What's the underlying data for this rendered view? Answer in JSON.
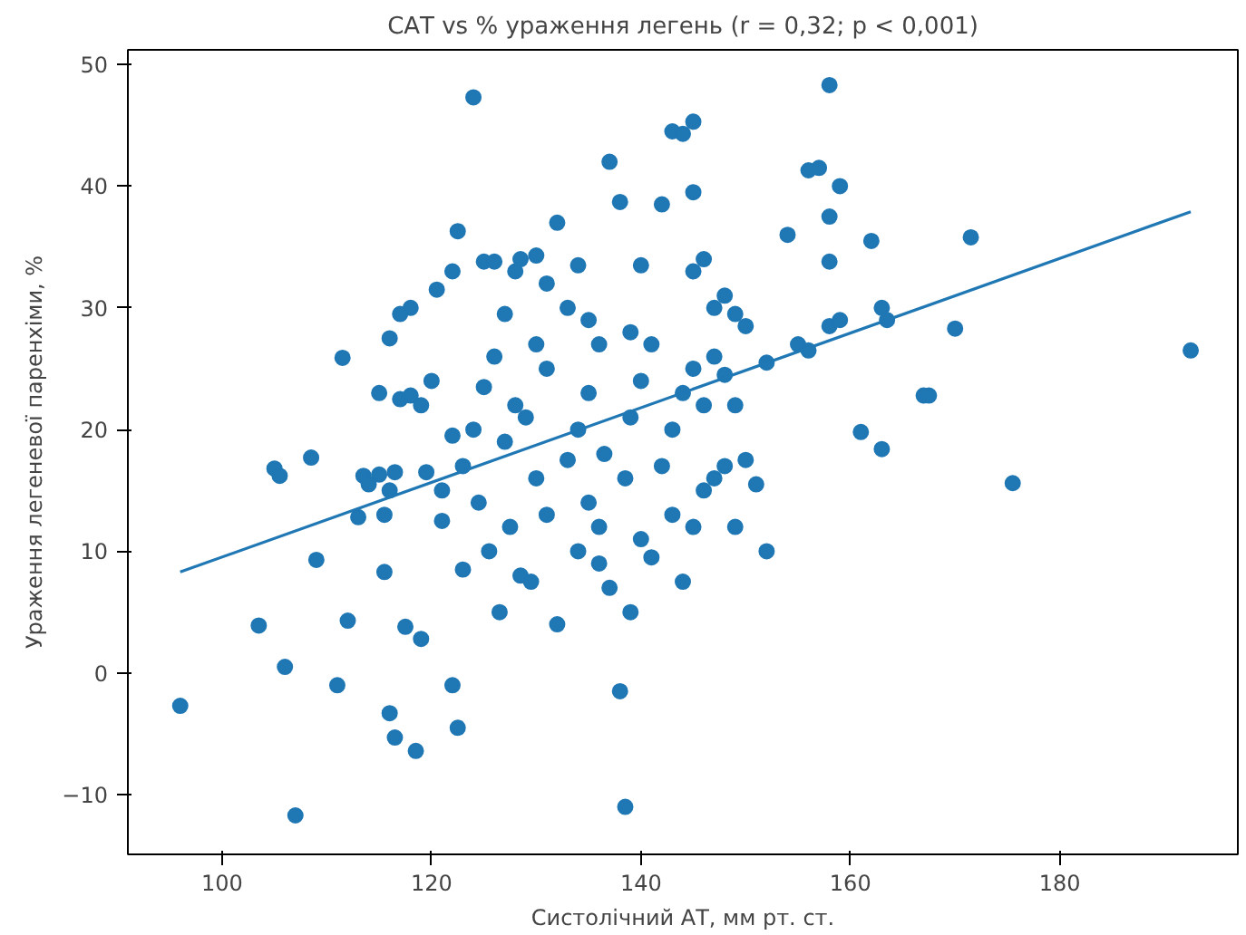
{
  "chart_data": {
    "type": "scatter",
    "title": "САТ vs % ураження легень (r = 0,32; p < 0,001)",
    "xlabel": "Систолічний АТ, мм рт. ст.",
    "ylabel": "Ураження легеневої паренхіми, %",
    "xlim": [
      91,
      197
    ],
    "ylim": [
      -14.9,
      51.2
    ],
    "xticks": [
      100,
      120,
      140,
      160,
      180
    ],
    "yticks": [
      -10,
      0,
      10,
      20,
      30,
      40,
      50
    ],
    "grid": false,
    "series": [
      {
        "color": "#1f77b4",
        "marker": "circle",
        "x": [
          96,
          105,
          105.5,
          106,
          107,
          108.5,
          103.5,
          109,
          111,
          111.5,
          112,
          113,
          113.5,
          114,
          115,
          115.5,
          116,
          116.5,
          115,
          115.5,
          116,
          117,
          118,
          116,
          116.5,
          117.5,
          118.5,
          119,
          117,
          118,
          119,
          119.5,
          120,
          120.5,
          121,
          122,
          122,
          122.5,
          122,
          122.5,
          123,
          121,
          123,
          124,
          125,
          124.5,
          124,
          125,
          126,
          127,
          128,
          128.5,
          126,
          127,
          128,
          129,
          130,
          131,
          125.5,
          126.5,
          127.5,
          128.5,
          129.5,
          130,
          131,
          130,
          131,
          132,
          133,
          134,
          135,
          132,
          133,
          134,
          135,
          136,
          136.5,
          134,
          135,
          136,
          137,
          137,
          138,
          136,
          138.5,
          139,
          139,
          140,
          140,
          138,
          138.5,
          139,
          140,
          141,
          141,
          142,
          143,
          144,
          145,
          145,
          142,
          143,
          144,
          145,
          146,
          147,
          148,
          149,
          143,
          144,
          145,
          146,
          147,
          148,
          149,
          150,
          145,
          146,
          147,
          148,
          149,
          150,
          151,
          152,
          152,
          154,
          156,
          157,
          158,
          158,
          158,
          159,
          155,
          156,
          158,
          159,
          161,
          162,
          163,
          163,
          163.5,
          167,
          167.5,
          170,
          171.5,
          175.5,
          192.5
        ],
        "values": [
          -2.7,
          16.8,
          16.2,
          0.5,
          -11.7,
          17.7,
          3.9,
          9.3,
          -1,
          25.9,
          4.3,
          12.8,
          16.2,
          15.5,
          16.3,
          13,
          15,
          16.5,
          23,
          8.3,
          27.5,
          29.5,
          30,
          -3.3,
          -5.3,
          3.8,
          -6.4,
          2.8,
          22.5,
          22.8,
          22,
          16.5,
          24,
          31.5,
          12.5,
          19.5,
          33,
          36.3,
          -1,
          -4.5,
          8.5,
          15,
          17,
          20,
          23.5,
          14,
          47.3,
          33.8,
          33.8,
          29.5,
          33,
          34,
          26,
          19,
          22,
          21,
          27,
          25,
          10,
          5,
          12,
          8,
          7.5,
          16,
          13,
          34.3,
          32,
          37,
          30,
          33.5,
          29,
          4,
          17.5,
          20,
          23,
          27,
          18,
          10,
          14,
          12,
          7,
          42,
          38.7,
          9,
          16,
          21,
          28,
          33.5,
          24,
          -1.5,
          -11,
          5,
          11,
          9.5,
          27,
          38.5,
          44.5,
          44.3,
          45.3,
          39.5,
          17,
          20,
          23,
          25,
          22,
          26,
          24.5,
          22,
          13,
          7.5,
          12,
          15,
          16,
          17,
          12,
          17.5,
          33,
          34,
          30,
          31,
          29.5,
          28.5,
          15.5,
          10,
          25.5,
          36,
          41.3,
          41.5,
          37.5,
          33.8,
          48.3,
          40,
          27,
          26.5,
          28.5,
          29,
          19.8,
          35.5,
          18.4,
          30,
          29,
          22.8,
          22.8,
          28.3,
          35.8,
          15.6,
          26.5
        ]
      },
      {
        "type": "line",
        "color": "#1f77b4",
        "marker": "none",
        "line_style": "solid",
        "x": [
          96,
          192.5
        ],
        "values": [
          8.3,
          37.9
        ]
      }
    ]
  }
}
